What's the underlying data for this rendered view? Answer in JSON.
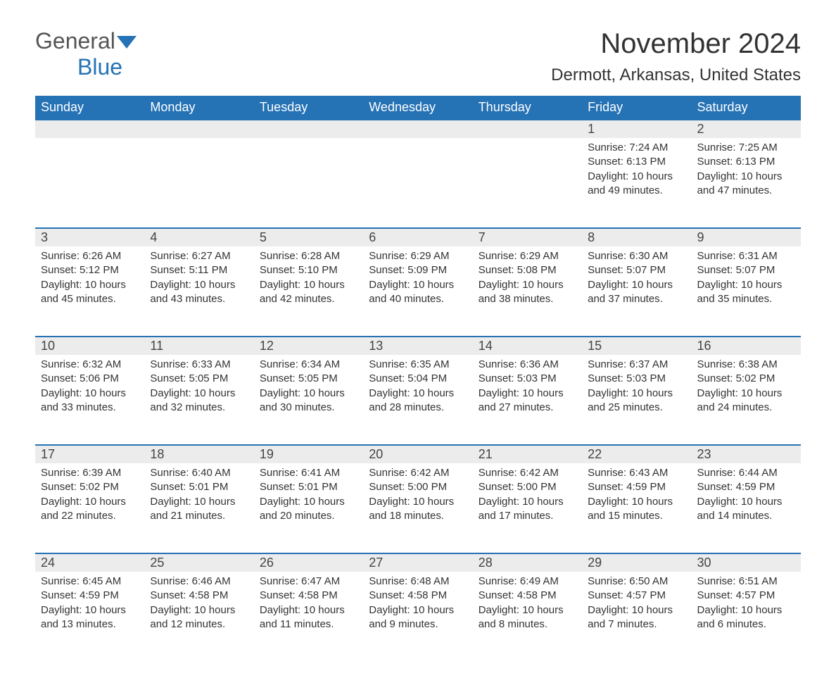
{
  "logo": {
    "text1": "General",
    "text2": "Blue"
  },
  "title": "November 2024",
  "location": "Dermott, Arkansas, United States",
  "colors": {
    "header_bg": "#2572b5",
    "header_text": "#ffffff",
    "daynum_bg": "#ececec",
    "border": "#2572b5",
    "text": "#333333"
  },
  "weekdays": [
    "Sunday",
    "Monday",
    "Tuesday",
    "Wednesday",
    "Thursday",
    "Friday",
    "Saturday"
  ],
  "weeks": [
    [
      null,
      null,
      null,
      null,
      null,
      {
        "n": "1",
        "sr": "Sunrise: 7:24 AM",
        "ss": "Sunset: 6:13 PM",
        "dl": "Daylight: 10 hours and 49 minutes."
      },
      {
        "n": "2",
        "sr": "Sunrise: 7:25 AM",
        "ss": "Sunset: 6:13 PM",
        "dl": "Daylight: 10 hours and 47 minutes."
      }
    ],
    [
      {
        "n": "3",
        "sr": "Sunrise: 6:26 AM",
        "ss": "Sunset: 5:12 PM",
        "dl": "Daylight: 10 hours and 45 minutes."
      },
      {
        "n": "4",
        "sr": "Sunrise: 6:27 AM",
        "ss": "Sunset: 5:11 PM",
        "dl": "Daylight: 10 hours and 43 minutes."
      },
      {
        "n": "5",
        "sr": "Sunrise: 6:28 AM",
        "ss": "Sunset: 5:10 PM",
        "dl": "Daylight: 10 hours and 42 minutes."
      },
      {
        "n": "6",
        "sr": "Sunrise: 6:29 AM",
        "ss": "Sunset: 5:09 PM",
        "dl": "Daylight: 10 hours and 40 minutes."
      },
      {
        "n": "7",
        "sr": "Sunrise: 6:29 AM",
        "ss": "Sunset: 5:08 PM",
        "dl": "Daylight: 10 hours and 38 minutes."
      },
      {
        "n": "8",
        "sr": "Sunrise: 6:30 AM",
        "ss": "Sunset: 5:07 PM",
        "dl": "Daylight: 10 hours and 37 minutes."
      },
      {
        "n": "9",
        "sr": "Sunrise: 6:31 AM",
        "ss": "Sunset: 5:07 PM",
        "dl": "Daylight: 10 hours and 35 minutes."
      }
    ],
    [
      {
        "n": "10",
        "sr": "Sunrise: 6:32 AM",
        "ss": "Sunset: 5:06 PM",
        "dl": "Daylight: 10 hours and 33 minutes."
      },
      {
        "n": "11",
        "sr": "Sunrise: 6:33 AM",
        "ss": "Sunset: 5:05 PM",
        "dl": "Daylight: 10 hours and 32 minutes."
      },
      {
        "n": "12",
        "sr": "Sunrise: 6:34 AM",
        "ss": "Sunset: 5:05 PM",
        "dl": "Daylight: 10 hours and 30 minutes."
      },
      {
        "n": "13",
        "sr": "Sunrise: 6:35 AM",
        "ss": "Sunset: 5:04 PM",
        "dl": "Daylight: 10 hours and 28 minutes."
      },
      {
        "n": "14",
        "sr": "Sunrise: 6:36 AM",
        "ss": "Sunset: 5:03 PM",
        "dl": "Daylight: 10 hours and 27 minutes."
      },
      {
        "n": "15",
        "sr": "Sunrise: 6:37 AM",
        "ss": "Sunset: 5:03 PM",
        "dl": "Daylight: 10 hours and 25 minutes."
      },
      {
        "n": "16",
        "sr": "Sunrise: 6:38 AM",
        "ss": "Sunset: 5:02 PM",
        "dl": "Daylight: 10 hours and 24 minutes."
      }
    ],
    [
      {
        "n": "17",
        "sr": "Sunrise: 6:39 AM",
        "ss": "Sunset: 5:02 PM",
        "dl": "Daylight: 10 hours and 22 minutes."
      },
      {
        "n": "18",
        "sr": "Sunrise: 6:40 AM",
        "ss": "Sunset: 5:01 PM",
        "dl": "Daylight: 10 hours and 21 minutes."
      },
      {
        "n": "19",
        "sr": "Sunrise: 6:41 AM",
        "ss": "Sunset: 5:01 PM",
        "dl": "Daylight: 10 hours and 20 minutes."
      },
      {
        "n": "20",
        "sr": "Sunrise: 6:42 AM",
        "ss": "Sunset: 5:00 PM",
        "dl": "Daylight: 10 hours and 18 minutes."
      },
      {
        "n": "21",
        "sr": "Sunrise: 6:42 AM",
        "ss": "Sunset: 5:00 PM",
        "dl": "Daylight: 10 hours and 17 minutes."
      },
      {
        "n": "22",
        "sr": "Sunrise: 6:43 AM",
        "ss": "Sunset: 4:59 PM",
        "dl": "Daylight: 10 hours and 15 minutes."
      },
      {
        "n": "23",
        "sr": "Sunrise: 6:44 AM",
        "ss": "Sunset: 4:59 PM",
        "dl": "Daylight: 10 hours and 14 minutes."
      }
    ],
    [
      {
        "n": "24",
        "sr": "Sunrise: 6:45 AM",
        "ss": "Sunset: 4:59 PM",
        "dl": "Daylight: 10 hours and 13 minutes."
      },
      {
        "n": "25",
        "sr": "Sunrise: 6:46 AM",
        "ss": "Sunset: 4:58 PM",
        "dl": "Daylight: 10 hours and 12 minutes."
      },
      {
        "n": "26",
        "sr": "Sunrise: 6:47 AM",
        "ss": "Sunset: 4:58 PM",
        "dl": "Daylight: 10 hours and 11 minutes."
      },
      {
        "n": "27",
        "sr": "Sunrise: 6:48 AM",
        "ss": "Sunset: 4:58 PM",
        "dl": "Daylight: 10 hours and 9 minutes."
      },
      {
        "n": "28",
        "sr": "Sunrise: 6:49 AM",
        "ss": "Sunset: 4:58 PM",
        "dl": "Daylight: 10 hours and 8 minutes."
      },
      {
        "n": "29",
        "sr": "Sunrise: 6:50 AM",
        "ss": "Sunset: 4:57 PM",
        "dl": "Daylight: 10 hours and 7 minutes."
      },
      {
        "n": "30",
        "sr": "Sunrise: 6:51 AM",
        "ss": "Sunset: 4:57 PM",
        "dl": "Daylight: 10 hours and 6 minutes."
      }
    ]
  ]
}
